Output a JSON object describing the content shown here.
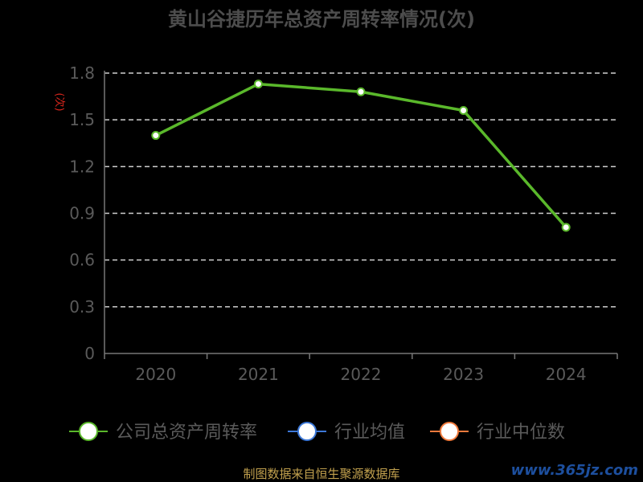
{
  "chart_data": {
    "type": "line",
    "title": "黄山谷捷历年总资产周转率情况(次)",
    "ylabel": "(次)",
    "categories": [
      "2020",
      "2021",
      "2022",
      "2023",
      "2024"
    ],
    "ylim": [
      0,
      1.8
    ],
    "yticks": [
      "0",
      "0.3",
      "0.6",
      "0.9",
      "1.2",
      "1.5",
      "1.8"
    ],
    "grid": true,
    "series": [
      {
        "name": "公司总资产周转率",
        "color": "#5ab82b",
        "values": [
          1.4,
          1.73,
          1.68,
          1.56,
          0.81
        ]
      }
    ],
    "legend": {
      "placement": "bottom",
      "items": [
        {
          "label": "公司总资产周转率",
          "color": "#5ab82b"
        },
        {
          "label": "行业均值",
          "color": "#3c78d8"
        },
        {
          "label": "行业中位数",
          "color": "#f07a3c"
        }
      ]
    }
  },
  "footer": {
    "source": "制图数据来自恒生聚源数据库",
    "watermark": "www.365jz.com"
  }
}
